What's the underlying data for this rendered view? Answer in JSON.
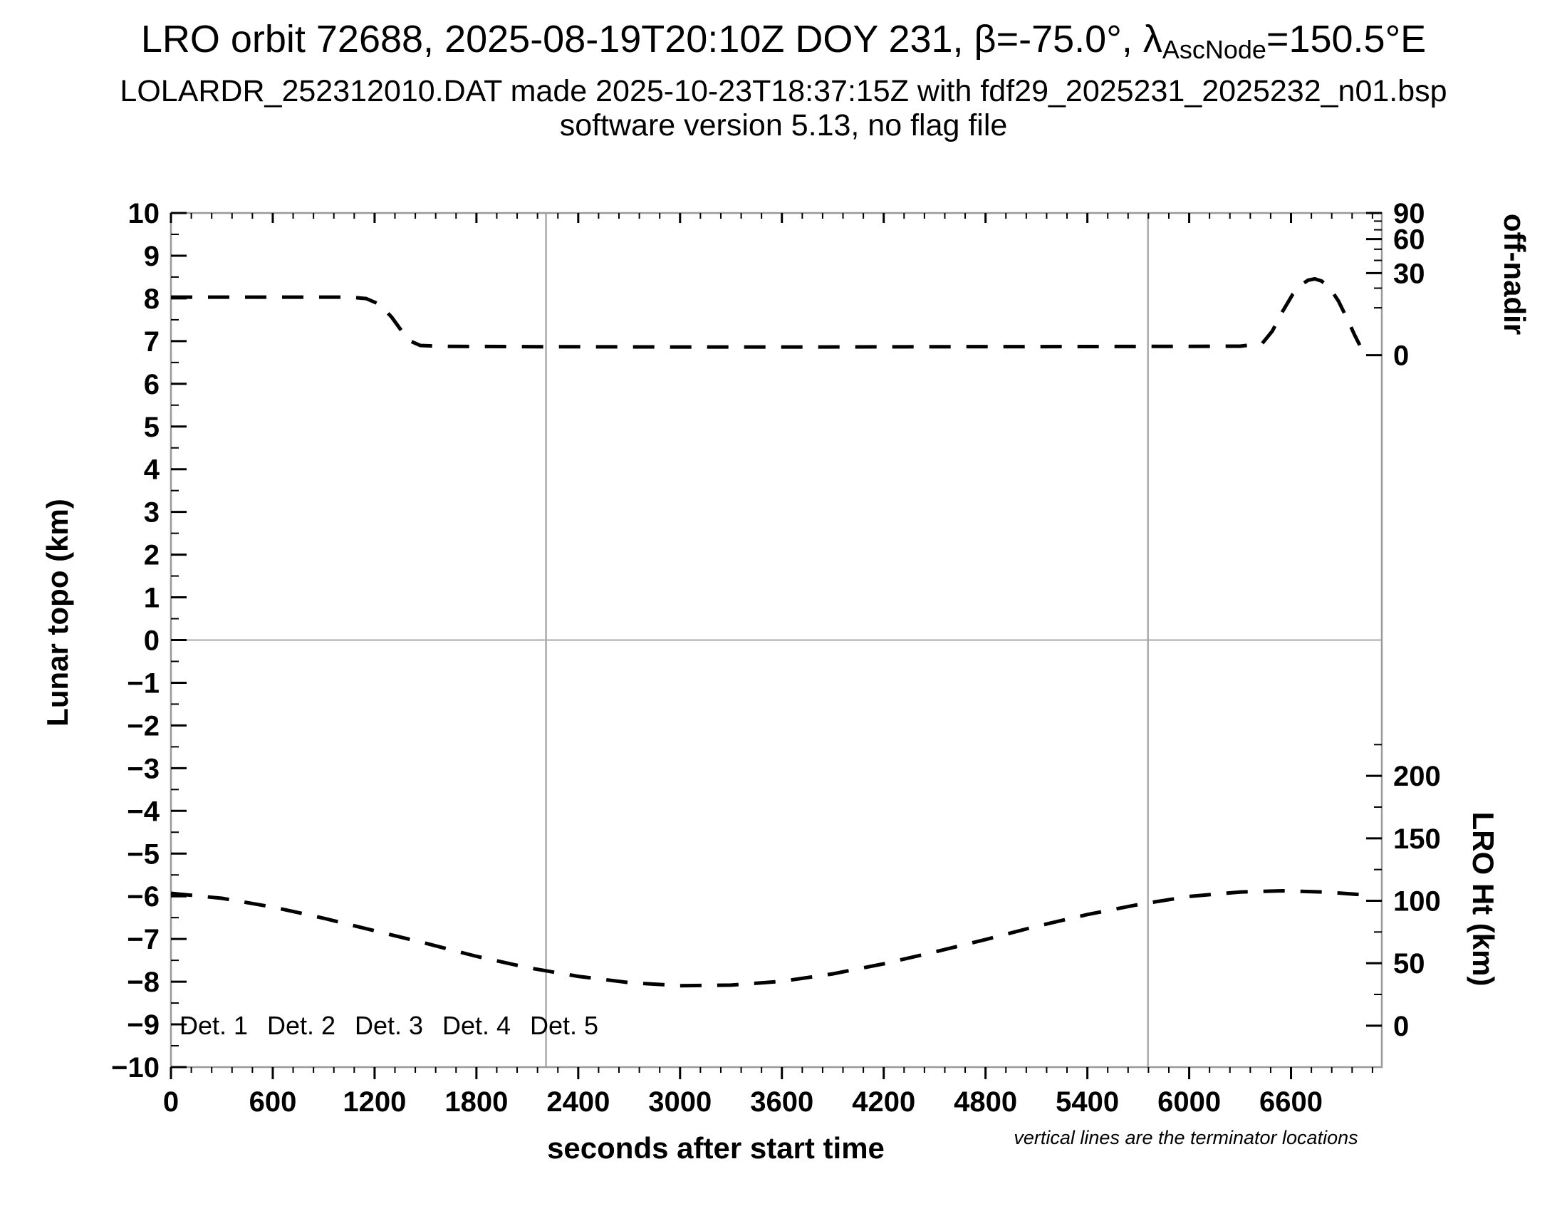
{
  "title": {
    "part1": "LRO orbit 72688, 2025-08-19T20:10Z DOY 231, β=-75.0°, λ",
    "part2": "AscNode",
    "part3": "=150.5°E"
  },
  "subtitle1": "LOLARDR_252312010.DAT made 2025-10-23T18:37:15Z with fdf29_2025231_2025232_n01.bsp",
  "subtitle2": "software version 5.13, no flag file",
  "footnote": "vertical lines are the terminator locations",
  "chart_data": {
    "type": "line",
    "title": "LRO orbit 72688, 2025-08-19T20:10Z DOY 231, β=-75.0°, λAscNode=150.5°E",
    "colors": {
      "frame": "#999999",
      "guide": "#aaaaaa",
      "curve": "#000000"
    },
    "x": {
      "label": "seconds after start time",
      "min": 0,
      "max": 7135,
      "major_step": 600,
      "minor_step": 120,
      "major_ticks": [
        0,
        600,
        1200,
        1800,
        2400,
        3000,
        3600,
        4200,
        4800,
        5400,
        6000,
        6600
      ],
      "tick_labels": [
        "0",
        "600",
        "1200",
        "1800",
        "2400",
        "3000",
        "3600",
        "4200",
        "4800",
        "5400",
        "6000",
        "6600"
      ]
    },
    "y_left": {
      "label": "Lunar topo (km)",
      "min": -10,
      "max": 10,
      "major_step": 1,
      "minor_step": 0.5,
      "tick_labels": [
        "10",
        "9",
        "8",
        "7",
        "6",
        "5",
        "4",
        "3",
        "2",
        "1",
        "0",
        "−1",
        "−2",
        "−3",
        "−4",
        "−5",
        "−6",
        "−7",
        "−8",
        "−9",
        "−10"
      ]
    },
    "y_right_top": {
      "label": "off-nadir",
      "unit": "degrees",
      "tick_degs": [
        0,
        30,
        60,
        90
      ],
      "tick_labels": [
        "0",
        "30",
        "60",
        "90"
      ],
      "minor_degs": [
        10,
        20,
        40,
        50,
        70,
        80
      ],
      "zero_left_units": 6.67,
      "span_left_units": 3.33,
      "mapping": "left_units = zero_left_units + span_left_units*sqrt(deg/90)"
    },
    "y_right_bottom": {
      "label": "LRO Ht (km)",
      "tick_kms": [
        0,
        50,
        100,
        150,
        200
      ],
      "tick_labels": [
        "0",
        "50",
        "100",
        "150",
        "200"
      ],
      "minor_kms": [
        25,
        75,
        125,
        175,
        225
      ],
      "zero_left_units": -9.03,
      "left_units_per_km": 0.02925,
      "mapping": "left_units = zero_left_units + left_units_per_km*km"
    },
    "terminator_lines_s": [
      2210,
      5757
    ],
    "series": [
      {
        "name": "off-nadir angle",
        "y_axis": "right-top",
        "color": "#000000",
        "line_style": "dashed",
        "points_t_deg": [
          [
            0,
            15.0
          ],
          [
            300,
            15.0
          ],
          [
            600,
            15.0
          ],
          [
            900,
            15.0
          ],
          [
            1050,
            15.0
          ],
          [
            1150,
            14.3
          ],
          [
            1230,
            11.5
          ],
          [
            1300,
            6.5
          ],
          [
            1360,
            2.6
          ],
          [
            1410,
            0.9
          ],
          [
            1470,
            0.42
          ],
          [
            1600,
            0.35
          ],
          [
            2200,
            0.32
          ],
          [
            3000,
            0.3
          ],
          [
            3800,
            0.3
          ],
          [
            4600,
            0.32
          ],
          [
            5400,
            0.33
          ],
          [
            6000,
            0.35
          ],
          [
            6300,
            0.36
          ],
          [
            6430,
            0.6
          ],
          [
            6490,
            2.6
          ],
          [
            6550,
            8.5
          ],
          [
            6610,
            16.5
          ],
          [
            6660,
            22.0
          ],
          [
            6700,
            25.0
          ],
          [
            6740,
            25.9
          ],
          [
            6780,
            24.5
          ],
          [
            6830,
            20.0
          ],
          [
            6880,
            13.0
          ],
          [
            6930,
            6.0
          ],
          [
            6975,
            1.8
          ],
          [
            7005,
            0.45
          ]
        ]
      },
      {
        "name": "LRO height",
        "y_axis": "right-bottom",
        "color": "#000000",
        "line_style": "dashed",
        "points_t_km": [
          [
            0,
            106
          ],
          [
            300,
            102
          ],
          [
            600,
            95
          ],
          [
            900,
            86
          ],
          [
            1200,
            76
          ],
          [
            1500,
            66
          ],
          [
            1800,
            55.5
          ],
          [
            2100,
            46.5
          ],
          [
            2400,
            39.5
          ],
          [
            2700,
            34.5
          ],
          [
            3000,
            32
          ],
          [
            3300,
            32.5
          ],
          [
            3600,
            35.5
          ],
          [
            3900,
            41.5
          ],
          [
            4200,
            49.5
          ],
          [
            4500,
            59
          ],
          [
            4800,
            69
          ],
          [
            5100,
            79.5
          ],
          [
            5400,
            89
          ],
          [
            5700,
            97
          ],
          [
            6000,
            103.5
          ],
          [
            6300,
            107
          ],
          [
            6550,
            108
          ],
          [
            6800,
            107
          ],
          [
            7000,
            105
          ]
        ]
      }
    ],
    "legend": {
      "items": [
        {
          "label": "Det. 1",
          "color": "#000000"
        },
        {
          "label": "Det. 2",
          "color": "#0000ff"
        },
        {
          "label": "Det. 3",
          "color": "#00dd00"
        },
        {
          "label": "Det. 4",
          "color": "#ffa500"
        },
        {
          "label": "Det. 5",
          "color": "#ff0000"
        }
      ]
    }
  }
}
